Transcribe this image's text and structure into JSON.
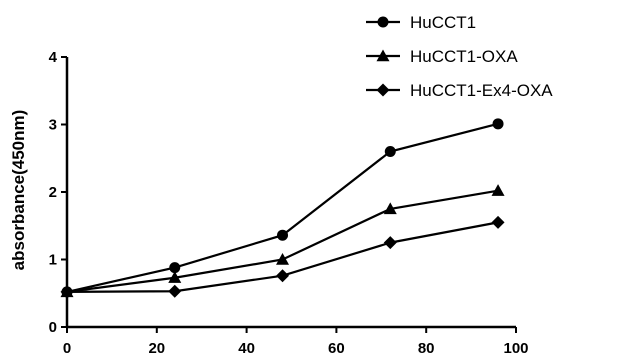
{
  "chart_data": {
    "type": "line",
    "title": "",
    "xlabel": "",
    "ylabel": "absorbance(450nm)",
    "x": [
      0,
      24,
      48,
      72,
      96
    ],
    "xlim": [
      0,
      100
    ],
    "ylim": [
      0,
      4
    ],
    "xticks": [
      "0",
      "20",
      "40",
      "60",
      "80",
      "100"
    ],
    "yticks": [
      "0",
      "1",
      "2",
      "3",
      "4"
    ],
    "grid": false,
    "legend": "top-right",
    "series": [
      {
        "name": "HuCCT1",
        "marker": "circle",
        "color": "#000000",
        "values": [
          0.52,
          0.88,
          1.36,
          2.6,
          3.01
        ]
      },
      {
        "name": "HuCCT1-OXA",
        "marker": "triangle",
        "color": "#000000",
        "values": [
          0.52,
          0.73,
          1.0,
          1.75,
          2.02
        ]
      },
      {
        "name": "HuCCT1-Ex4-OXA",
        "marker": "diamond",
        "color": "#000000",
        "values": [
          0.52,
          0.53,
          0.76,
          1.25,
          1.55
        ]
      }
    ]
  }
}
